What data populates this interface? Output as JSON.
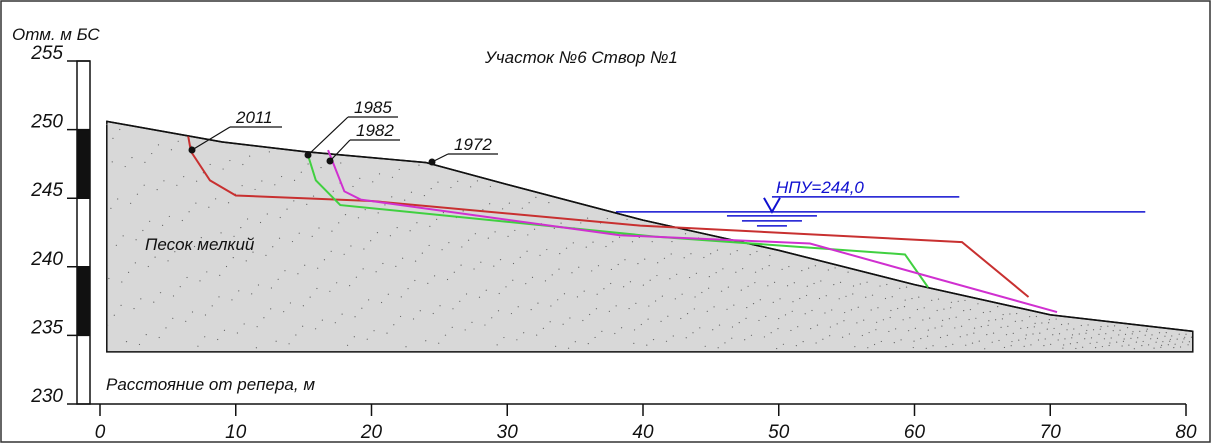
{
  "chart_data": {
    "type": "line",
    "title": "Участок №6 Створ №1",
    "ylabel": "Отм. м БС",
    "xlabel": "Расстояние от репера, м",
    "annotation": "Песок мелкий",
    "xlim": [
      0,
      80
    ],
    "ylim": [
      230,
      255
    ],
    "xticks": [
      0,
      10,
      20,
      30,
      40,
      50,
      60,
      70,
      80
    ],
    "yticks": [
      230,
      235,
      240,
      245,
      250,
      255
    ],
    "ground_base": 233.8,
    "ground_color": "#d8d8d8",
    "water": {
      "label": "НПУ=244,0",
      "value": 244,
      "x": [
        38,
        77
      ],
      "color": "#1010d0"
    },
    "series": [
      {
        "name": "1972",
        "color": "#111111",
        "x": [
          0.5,
          9,
          15,
          24,
          30,
          40,
          50,
          60,
          70,
          80.5
        ],
        "values": [
          250.6,
          249.1,
          248.4,
          247.6,
          246,
          243.4,
          241.2,
          238.7,
          236.5,
          235.3
        ]
      },
      {
        "name": "2011",
        "color": "#c83030",
        "x": [
          6.5,
          6.7,
          8.1,
          10,
          20,
          39.8,
          63.5,
          68.4
        ],
        "values": [
          249.5,
          248.4,
          246.3,
          245.2,
          244.8,
          243,
          241.8,
          237.8
        ]
      },
      {
        "name": "1985",
        "color": "#40d040",
        "x": [
          15.3,
          15.9,
          17.7,
          40.9,
          59.3,
          61
        ],
        "values": [
          248.2,
          246.3,
          244.5,
          242.2,
          240.9,
          238.5
        ]
      },
      {
        "name": "1982",
        "color": "#d030d0",
        "x": [
          16.8,
          18,
          19.2,
          38.3,
          52.3,
          70.5
        ],
        "values": [
          248.5,
          245.5,
          244.9,
          242.3,
          241.7,
          236.7
        ]
      }
    ]
  }
}
